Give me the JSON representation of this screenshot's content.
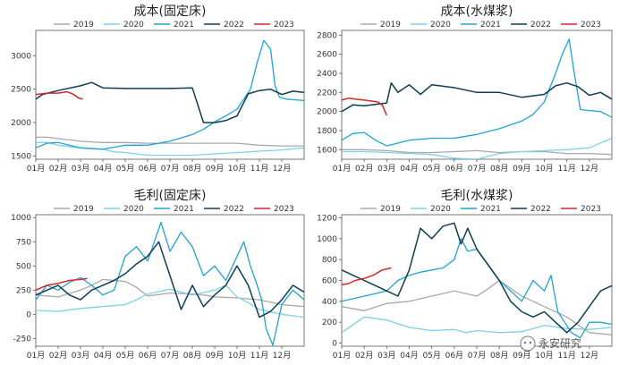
{
  "legend_years": [
    "2019",
    "2020",
    "2021",
    "2022",
    "2023"
  ],
  "series_colors": {
    "2019": "#a8a8a8",
    "2020": "#7fd0e8",
    "2021": "#1fa3d4",
    "2022": "#0e3d55",
    "2023": "#d62728"
  },
  "months": [
    "01月",
    "02月",
    "03月",
    "04月",
    "05月",
    "06月",
    "07月",
    "08月",
    "09月",
    "10月",
    "11月",
    "12月"
  ],
  "watermark": "永安研究",
  "chart_data": [
    {
      "type": "line",
      "title": "成本(固定床)",
      "ylim": [
        1450,
        3380
      ],
      "yticks": [
        1500,
        2000,
        2500,
        3000
      ],
      "series": [
        {
          "name": "2019",
          "x": [
            0,
            0.5,
            1,
            2,
            3,
            3.5,
            4,
            5,
            6,
            7,
            8,
            9,
            10,
            11,
            12
          ],
          "values": [
            1780,
            1780,
            1760,
            1720,
            1700,
            1700,
            1700,
            1690,
            1690,
            1690,
            1690,
            1690,
            1660,
            1650,
            1650
          ]
        },
        {
          "name": "2020",
          "x": [
            0,
            0.5,
            1,
            2,
            3,
            3.5,
            4,
            5,
            6,
            7,
            8,
            9,
            10,
            11,
            12
          ],
          "values": [
            1700,
            1700,
            1660,
            1620,
            1600,
            1560,
            1550,
            1510,
            1510,
            1510,
            1530,
            1550,
            1570,
            1590,
            1620
          ]
        },
        {
          "name": "2021",
          "x": [
            0,
            0.5,
            1,
            2,
            3,
            4,
            5,
            6,
            7,
            7.5,
            8,
            8.5,
            9,
            9.3,
            9.6,
            9.9,
            10.2,
            10.5,
            10.7,
            10.9,
            11.2,
            11.6,
            12
          ],
          "values": [
            1620,
            1690,
            1700,
            1620,
            1600,
            1660,
            1660,
            1720,
            1820,
            1900,
            2010,
            2100,
            2200,
            2350,
            2500,
            2900,
            3230,
            3100,
            2550,
            2380,
            2350,
            2340,
            2330
          ]
        },
        {
          "name": "2022",
          "x": [
            0,
            0.3,
            1,
            2,
            2.5,
            3,
            4,
            5,
            6,
            7,
            7.5,
            8,
            8.5,
            9,
            9.5,
            10,
            10.5,
            11,
            11.5,
            12
          ],
          "values": [
            2350,
            2420,
            2480,
            2550,
            2600,
            2520,
            2510,
            2510,
            2510,
            2520,
            2000,
            2000,
            2030,
            2100,
            2430,
            2480,
            2500,
            2420,
            2470,
            2450
          ]
        },
        {
          "name": "2023",
          "x": [
            0,
            0.5,
            1,
            1.4,
            1.7,
            1.9,
            2.1
          ],
          "values": [
            2420,
            2440,
            2440,
            2460,
            2420,
            2370,
            2350
          ]
        }
      ]
    },
    {
      "type": "line",
      "title": "成本(水煤浆)",
      "ylim": [
        1500,
        2850
      ],
      "yticks": [
        1600,
        1800,
        2000,
        2200,
        2400,
        2600,
        2800
      ],
      "series": [
        {
          "name": "2019",
          "x": [
            0,
            1,
            2,
            3,
            4,
            5,
            6,
            7,
            8,
            9,
            10,
            11,
            12
          ],
          "values": [
            1600,
            1600,
            1590,
            1570,
            1570,
            1580,
            1590,
            1570,
            1580,
            1580,
            1560,
            1560,
            1550
          ]
        },
        {
          "name": "2020",
          "x": [
            0,
            1,
            2,
            3,
            4,
            5,
            6,
            7,
            8,
            9,
            10,
            11,
            12
          ],
          "values": [
            1580,
            1580,
            1570,
            1560,
            1550,
            1510,
            1500,
            1560,
            1580,
            1590,
            1600,
            1620,
            1720
          ]
        },
        {
          "name": "2021",
          "x": [
            0,
            0.5,
            1,
            1.5,
            2,
            3,
            4,
            5,
            6,
            7,
            8,
            8.5,
            9,
            9.5,
            9.8,
            10.1,
            10.3,
            10.6,
            11,
            11.5,
            12
          ],
          "values": [
            1700,
            1770,
            1780,
            1700,
            1640,
            1700,
            1720,
            1720,
            1760,
            1820,
            1900,
            1970,
            2100,
            2400,
            2600,
            2760,
            2450,
            2020,
            2010,
            2000,
            1940
          ]
        },
        {
          "name": "2022",
          "x": [
            0,
            0.5,
            1,
            2,
            2.2,
            2.5,
            3,
            3.5,
            4,
            5,
            6,
            7,
            8,
            9,
            9.5,
            10,
            10.5,
            11,
            11.5,
            12
          ],
          "values": [
            2000,
            2070,
            2060,
            2090,
            2300,
            2200,
            2280,
            2180,
            2280,
            2250,
            2200,
            2200,
            2150,
            2180,
            2270,
            2300,
            2260,
            2170,
            2200,
            2130
          ]
        },
        {
          "name": "2023",
          "x": [
            0,
            0.3,
            0.6,
            1,
            1.3,
            1.6,
            1.8,
            2
          ],
          "values": [
            2120,
            2140,
            2130,
            2120,
            2110,
            2100,
            2070,
            1960
          ]
        }
      ]
    },
    {
      "type": "line",
      "title": "毛利(固定床)",
      "ylim": [
        -330,
        1030
      ],
      "yticks": [
        -250,
        0,
        250,
        500,
        750,
        1000
      ],
      "series": [
        {
          "name": "2019",
          "x": [
            0,
            1,
            2,
            2.5,
            3,
            4,
            4.5,
            5,
            6,
            7,
            7.5,
            8,
            9,
            10,
            11,
            12
          ],
          "values": [
            200,
            180,
            250,
            300,
            360,
            340,
            280,
            190,
            220,
            210,
            200,
            180,
            170,
            150,
            100,
            80
          ]
        },
        {
          "name": "2020",
          "x": [
            0,
            1,
            2,
            3,
            4,
            4.5,
            5,
            6,
            7,
            8,
            8.5,
            9,
            9.5,
            10,
            11,
            12
          ],
          "values": [
            40,
            30,
            60,
            80,
            100,
            150,
            210,
            260,
            200,
            250,
            300,
            180,
            120,
            50,
            0,
            -30
          ]
        },
        {
          "name": "2021",
          "x": [
            0,
            0.5,
            1,
            1.5,
            2,
            2.5,
            3,
            3.5,
            4,
            4.5,
            5,
            5.3,
            5.6,
            6,
            6.5,
            7,
            7.5,
            8,
            8.5,
            9,
            9.3,
            9.6,
            9.9,
            10.1,
            10.3,
            10.6,
            11,
            11.5,
            12
          ],
          "values": [
            150,
            300,
            250,
            330,
            380,
            300,
            200,
            250,
            600,
            700,
            550,
            750,
            950,
            650,
            850,
            700,
            400,
            500,
            350,
            600,
            750,
            500,
            300,
            150,
            -150,
            -320,
            100,
            250,
            150
          ]
        },
        {
          "name": "2022",
          "x": [
            0,
            0.5,
            1,
            1.5,
            2,
            2.5,
            3,
            3.5,
            4,
            4.5,
            5,
            5.5,
            6,
            6.5,
            7,
            7.5,
            8,
            8.5,
            9,
            9.5,
            10,
            10.5,
            11,
            11.5,
            12
          ],
          "values": [
            200,
            250,
            300,
            200,
            150,
            250,
            300,
            350,
            420,
            520,
            600,
            750,
            400,
            50,
            300,
            80,
            200,
            300,
            500,
            300,
            -30,
            30,
            150,
            300,
            230
          ]
        },
        {
          "name": "2023",
          "x": [
            0,
            0.5,
            1,
            1.5,
            2,
            2.3
          ],
          "values": [
            250,
            300,
            320,
            350,
            360,
            370
          ]
        }
      ]
    },
    {
      "type": "line",
      "title": "毛利(水煤浆)",
      "ylim": [
        -30,
        1230
      ],
      "yticks": [
        0,
        200,
        400,
        600,
        800,
        1000,
        1200
      ],
      "series": [
        {
          "name": "2019",
          "x": [
            0,
            1,
            2,
            3,
            4,
            5,
            6,
            6.5,
            7,
            8,
            9,
            10,
            11,
            12
          ],
          "values": [
            350,
            310,
            380,
            400,
            450,
            500,
            450,
            520,
            600,
            450,
            350,
            250,
            100,
            80
          ]
        },
        {
          "name": "2020",
          "x": [
            0,
            1,
            2,
            3,
            4,
            5,
            5.5,
            6,
            7,
            8,
            9,
            10,
            11,
            12
          ],
          "values": [
            100,
            250,
            220,
            150,
            120,
            130,
            100,
            120,
            100,
            110,
            170,
            140,
            130,
            150
          ]
        },
        {
          "name": "2021",
          "x": [
            0,
            1,
            2,
            2.5,
            3,
            3.5,
            4,
            4.5,
            5,
            5.3,
            5.6,
            6,
            6.5,
            7,
            7.5,
            8,
            8.5,
            9,
            9.3,
            9.6,
            9.9,
            10.2,
            10.6,
            11,
            11.5,
            12
          ],
          "values": [
            400,
            450,
            500,
            600,
            650,
            680,
            700,
            720,
            800,
            1000,
            880,
            900,
            750,
            600,
            500,
            400,
            600,
            500,
            650,
            300,
            200,
            100,
            50,
            200,
            200,
            180
          ]
        },
        {
          "name": "2022",
          "x": [
            0,
            0.5,
            1,
            1.5,
            2,
            2.5,
            3,
            3.5,
            4,
            4.5,
            5,
            5.3,
            5.6,
            6,
            6.5,
            7,
            7.5,
            8,
            8.5,
            9,
            9.5,
            10,
            10.5,
            11,
            11.5,
            12
          ],
          "values": [
            700,
            650,
            600,
            550,
            500,
            450,
            700,
            1100,
            1000,
            1120,
            1150,
            950,
            1100,
            900,
            750,
            600,
            400,
            300,
            250,
            300,
            200,
            100,
            200,
            350,
            500,
            550
          ]
        },
        {
          "name": "2023",
          "x": [
            0,
            0.3,
            0.6,
            1,
            1.4,
            1.8,
            2.2
          ],
          "values": [
            560,
            570,
            600,
            620,
            650,
            700,
            720
          ]
        }
      ]
    }
  ]
}
